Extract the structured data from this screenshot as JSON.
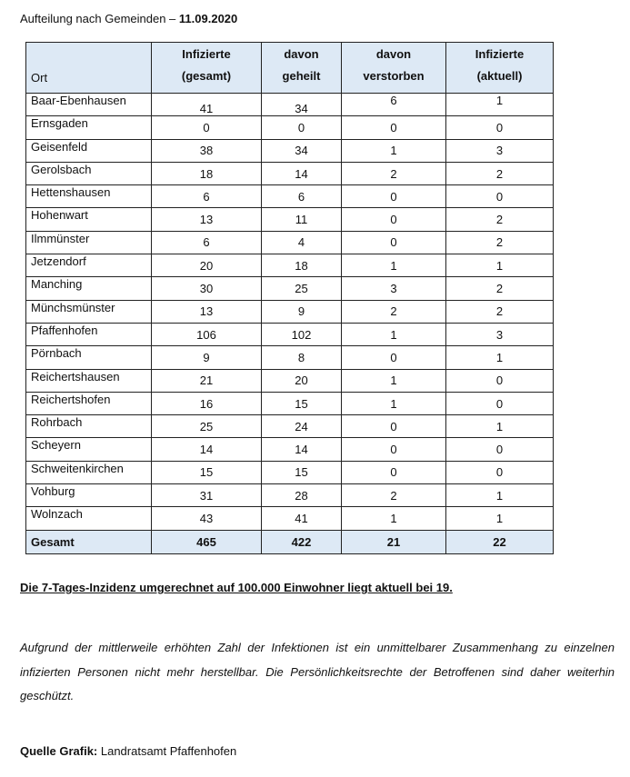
{
  "title": {
    "text": "Aufteilung nach Gemeinden – ",
    "date": "11.09.2020"
  },
  "table": {
    "headers": [
      "Ort",
      "Infizierte\n(gesamt)",
      "davon\ngeheilt",
      "davon\nverstorben",
      "Infizierte\n(aktuell)"
    ],
    "rows": [
      [
        "Baar-Ebenhausen",
        "41",
        "34",
        "6",
        "1"
      ],
      [
        "Ernsgaden",
        "0",
        "0",
        "0",
        "0"
      ],
      [
        "Geisenfeld",
        "38",
        "34",
        "1",
        "3"
      ],
      [
        "Gerolsbach",
        "18",
        "14",
        "2",
        "2"
      ],
      [
        "Hettenshausen",
        "6",
        "6",
        "0",
        "0"
      ],
      [
        "Hohenwart",
        "13",
        "11",
        "0",
        "2"
      ],
      [
        "Ilmmünster",
        "6",
        "4",
        "0",
        "2"
      ],
      [
        "Jetzendorf",
        "20",
        "18",
        "1",
        "1"
      ],
      [
        "Manching",
        "30",
        "25",
        "3",
        "2"
      ],
      [
        "Münchsmünster",
        "13",
        "9",
        "2",
        "2"
      ],
      [
        "Pfaffenhofen",
        "106",
        "102",
        "1",
        "3"
      ],
      [
        "Pörnbach",
        "9",
        "8",
        "0",
        "1"
      ],
      [
        "Reichertshausen",
        "21",
        "20",
        "1",
        "0"
      ],
      [
        "Reichertshofen",
        "16",
        "15",
        "1",
        "0"
      ],
      [
        "Rohrbach",
        "25",
        "24",
        "0",
        "1"
      ],
      [
        "Scheyern",
        "14",
        "14",
        "0",
        "0"
      ],
      [
        "Schweitenkirchen",
        "15",
        "15",
        "0",
        "0"
      ],
      [
        "Vohburg",
        "31",
        "28",
        "2",
        "1"
      ],
      [
        "Wolnzach",
        "43",
        "41",
        "1",
        "1"
      ]
    ],
    "total": [
      "Gesamt",
      "465",
      "422",
      "21",
      "22"
    ]
  },
  "incidence": "Die 7-Tages-Inzidenz umgerechnet auf 100.000 Einwohner liegt aktuell bei 19.",
  "paragraph": "Aufgrund der mittlerweile erhöhten Zahl der Infektionen ist ein unmittelbarer Zusammenhang zu einzelnen infizierten Personen nicht mehr herstellbar. Die Persönlichkeitsrechte der Betroffenen sind daher weiterhin geschützt.",
  "source": {
    "label": "Quelle Grafik:",
    "value": " Landratsamt Pfaffenhofen"
  }
}
